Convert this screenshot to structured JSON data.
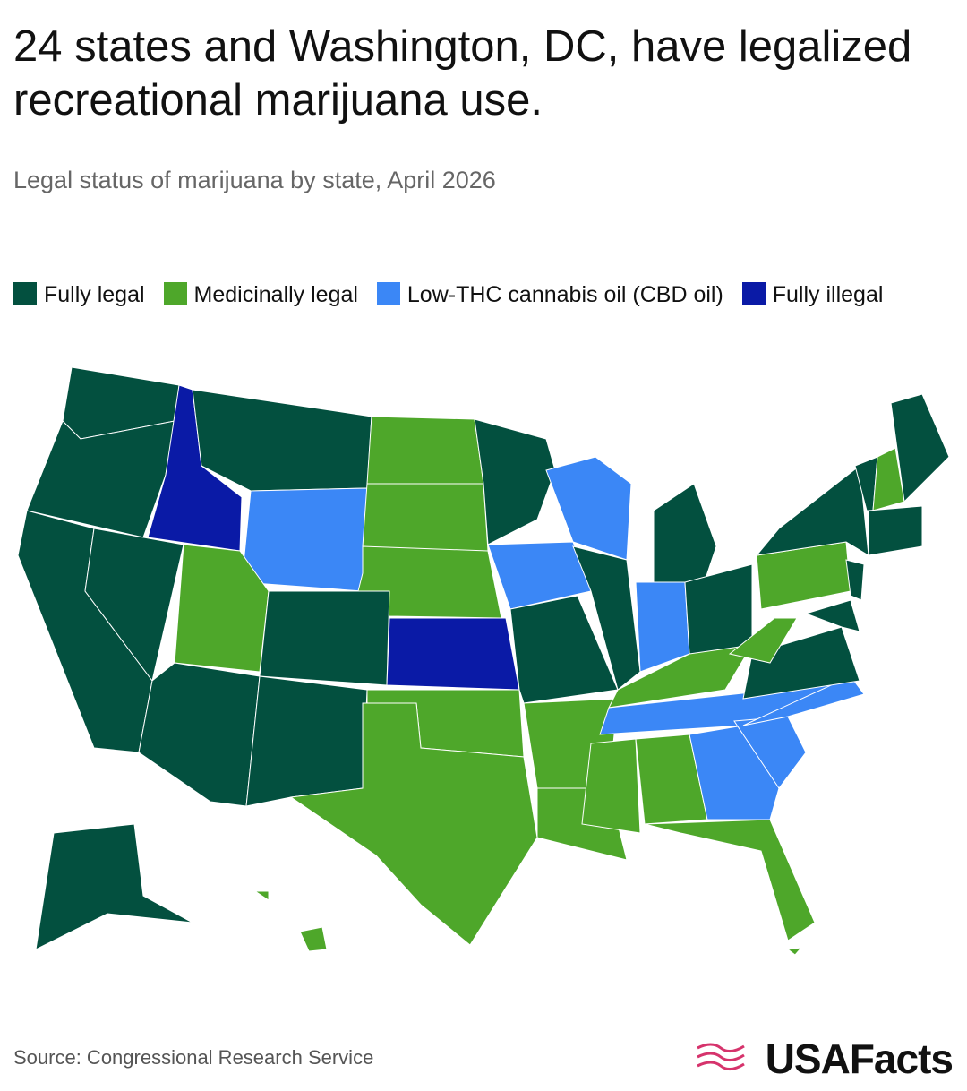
{
  "header": {
    "title": "24 states and Washington, DC, have legalized recreational marijuana use.",
    "subtitle": "Legal status of marijuana by state, April 2026"
  },
  "legend": {
    "items": [
      {
        "label": "Fully legal",
        "color": "#03503f"
      },
      {
        "label": "Medicinally legal",
        "color": "#4ea72a"
      },
      {
        "label": "Low-THC cannabis oil (CBD oil)",
        "color": "#3b87f6"
      },
      {
        "label": "Fully illegal",
        "color": "#0a1aa6"
      }
    ]
  },
  "footer": {
    "source": "Source: Congressional Research Service",
    "logo": "USAFacts"
  }
}
